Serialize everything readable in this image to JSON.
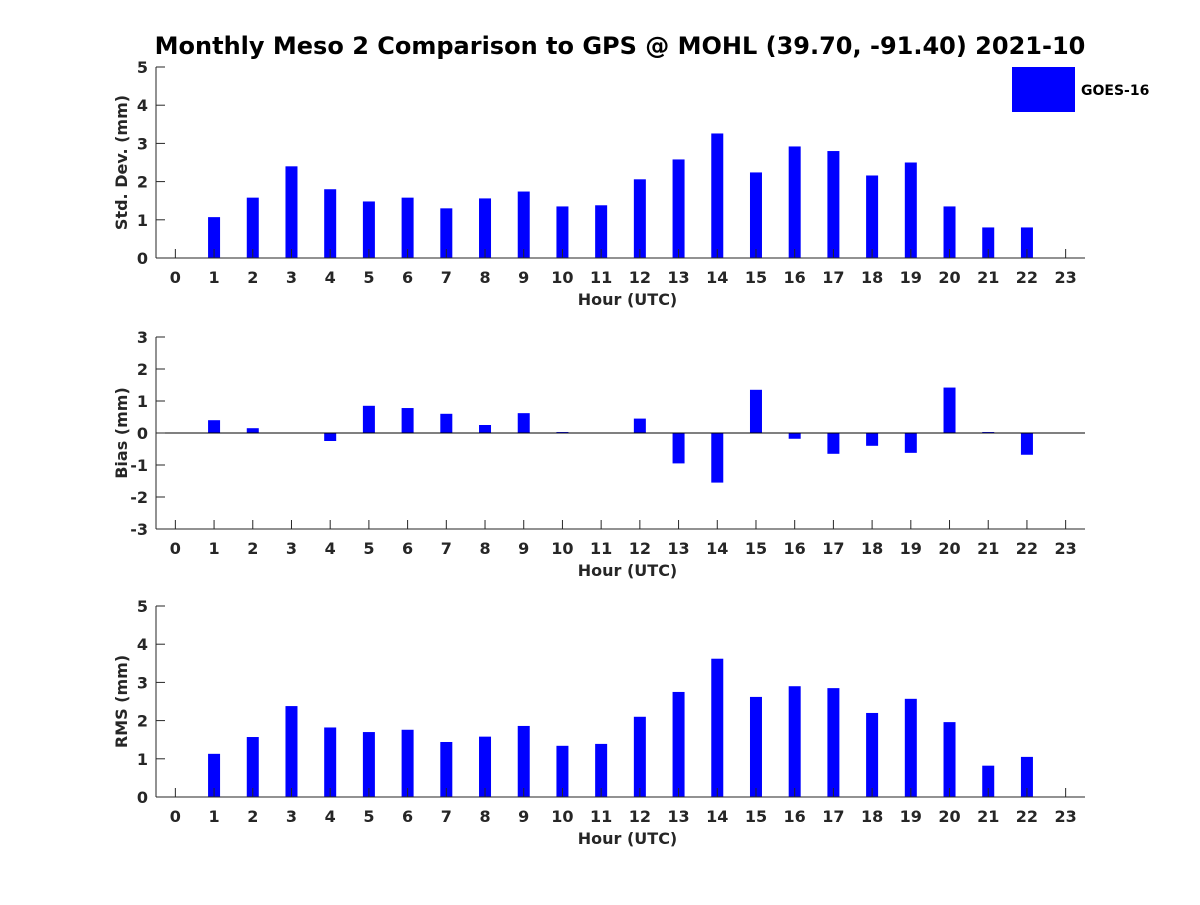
{
  "title": "Monthly Meso 2 Comparison to GPS @ MOHL (39.70, -91.40) 2021-10",
  "legend": {
    "label": "GOES-16",
    "color": "#0000ff"
  },
  "chart_data": [
    {
      "type": "bar",
      "ylabel": "Std. Dev. (mm)",
      "xlabel": "Hour (UTC)",
      "ylim": [
        0,
        5
      ],
      "yticks": [
        0,
        1,
        2,
        3,
        4,
        5
      ],
      "x": [
        0,
        1,
        2,
        3,
        4,
        5,
        6,
        7,
        8,
        9,
        10,
        11,
        12,
        13,
        14,
        15,
        16,
        17,
        18,
        19,
        20,
        21,
        22,
        23
      ],
      "xtick_labels": [
        "0",
        "1",
        "2",
        "3",
        "4",
        "5",
        "6",
        "7",
        "8",
        "9",
        "10",
        "11",
        "12",
        "13",
        "14",
        "15",
        "16",
        "17",
        "18",
        "19",
        "20",
        "21",
        "22",
        "23"
      ],
      "series": [
        {
          "name": "GOES-16",
          "color": "#0000ff",
          "values": [
            null,
            1.07,
            1.58,
            2.4,
            1.8,
            1.48,
            1.58,
            1.3,
            1.56,
            1.74,
            1.35,
            1.38,
            2.06,
            2.58,
            3.26,
            2.24,
            2.92,
            2.8,
            2.16,
            2.5,
            1.35,
            0.8,
            0.8,
            null
          ]
        }
      ]
    },
    {
      "type": "bar",
      "ylabel": "Bias (mm)",
      "xlabel": "Hour (UTC)",
      "ylim": [
        -3,
        3
      ],
      "yticks": [
        -3,
        -2,
        -1,
        0,
        1,
        2,
        3
      ],
      "x": [
        0,
        1,
        2,
        3,
        4,
        5,
        6,
        7,
        8,
        9,
        10,
        11,
        12,
        13,
        14,
        15,
        16,
        17,
        18,
        19,
        20,
        21,
        22,
        23
      ],
      "xtick_labels": [
        "0",
        "1",
        "2",
        "3",
        "4",
        "5",
        "6",
        "7",
        "8",
        "9",
        "10",
        "11",
        "12",
        "13",
        "14",
        "15",
        "16",
        "17",
        "18",
        "19",
        "20",
        "21",
        "22",
        "23"
      ],
      "series": [
        {
          "name": "GOES-16",
          "color": "#0000ff",
          "values": [
            null,
            0.4,
            0.15,
            0.0,
            -0.25,
            0.85,
            0.78,
            0.6,
            0.25,
            0.62,
            0.03,
            0.0,
            0.45,
            -0.95,
            -1.55,
            1.35,
            -0.18,
            -0.65,
            -0.4,
            -0.62,
            1.42,
            0.03,
            -0.68,
            null
          ]
        }
      ]
    },
    {
      "type": "bar",
      "ylabel": "RMS (mm)",
      "xlabel": "Hour (UTC)",
      "ylim": [
        0,
        5
      ],
      "yticks": [
        0,
        1,
        2,
        3,
        4,
        5
      ],
      "x": [
        0,
        1,
        2,
        3,
        4,
        5,
        6,
        7,
        8,
        9,
        10,
        11,
        12,
        13,
        14,
        15,
        16,
        17,
        18,
        19,
        20,
        21,
        22,
        23
      ],
      "xtick_labels": [
        "0",
        "1",
        "2",
        "3",
        "4",
        "5",
        "6",
        "7",
        "8",
        "9",
        "10",
        "11",
        "12",
        "13",
        "14",
        "15",
        "16",
        "17",
        "18",
        "19",
        "20",
        "21",
        "22",
        "23"
      ],
      "series": [
        {
          "name": "GOES-16",
          "color": "#0000ff",
          "values": [
            null,
            1.13,
            1.57,
            2.38,
            1.82,
            1.7,
            1.76,
            1.44,
            1.58,
            1.86,
            1.34,
            1.39,
            2.1,
            2.75,
            3.62,
            2.62,
            2.9,
            2.85,
            2.2,
            2.57,
            1.96,
            0.82,
            1.05,
            null
          ]
        }
      ]
    }
  ]
}
